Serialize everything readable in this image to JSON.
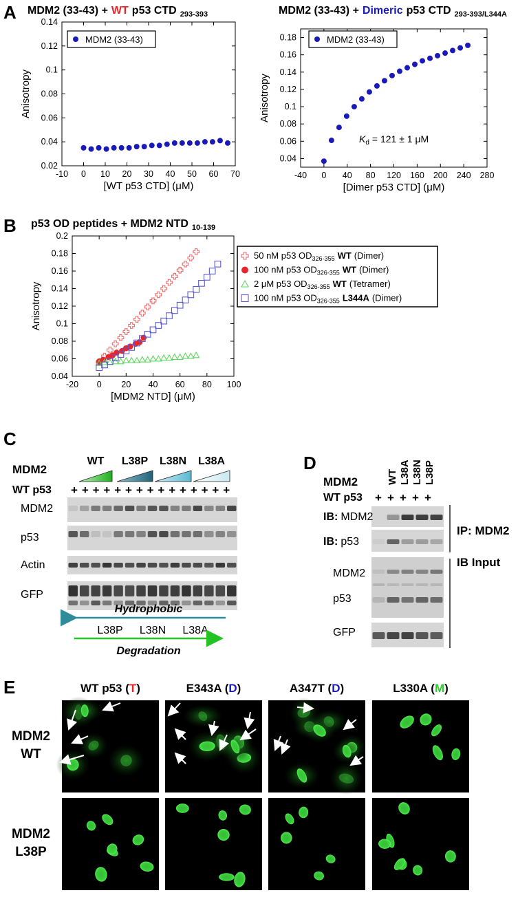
{
  "panel_labels": [
    "A",
    "B",
    "C",
    "D",
    "E"
  ],
  "chart_data": [
    {
      "type": "scatter",
      "title": {
        "before": "MDM2 (33-43) +",
        "highlight": "WT",
        "after": "p53 CTD",
        "sub": "293-393"
      },
      "highlight_color": "#e8252a",
      "xlabel": "[WT p53 CTD] (μM)",
      "ylabel": "Anisotropy",
      "xlim": [
        -10,
        70
      ],
      "xticks": [
        -10,
        0,
        10,
        20,
        30,
        40,
        50,
        60,
        70
      ],
      "ylim": [
        0.02,
        0.14
      ],
      "yticks": [
        0.02,
        0.04,
        0.06,
        0.08,
        0.1,
        0.12,
        0.14
      ],
      "legend": "upper left",
      "series": [
        {
          "name": "MDM2 (33-43)",
          "color": "#1a1ab8",
          "marker": "circle",
          "filled": true,
          "x": [
            0,
            3.5,
            7,
            10.5,
            14,
            17.5,
            21,
            24.5,
            28,
            31.5,
            35,
            38.5,
            42,
            45.5,
            49,
            52.5,
            56,
            59.5,
            63,
            66.5
          ],
          "values": [
            0.035,
            0.034,
            0.035,
            0.034,
            0.035,
            0.035,
            0.035,
            0.036,
            0.036,
            0.037,
            0.037,
            0.038,
            0.039,
            0.039,
            0.039,
            0.039,
            0.04,
            0.04,
            0.041,
            0.039
          ]
        }
      ]
    },
    {
      "type": "scatter",
      "title": {
        "before": "MDM2 (33-43) +",
        "highlight": "Dimeric",
        "after": "p53 CTD",
        "sub": "293-393/L344A"
      },
      "highlight_color": "#1a1ab8",
      "xlabel": "[Dimer p53 CTD] (μM)",
      "ylabel": "Anisotropy",
      "xlim": [
        -40,
        280
      ],
      "xticks": [
        -40,
        0,
        40,
        80,
        120,
        160,
        200,
        240,
        280
      ],
      "ylim": [
        0.03,
        0.19
      ],
      "yticks": [
        0.04,
        0.06,
        0.08,
        0.1,
        0.12,
        0.14,
        0.16,
        0.18
      ],
      "legend": "upper left",
      "annotation": {
        "symbol": "K",
        "sub": "d",
        "text": "= 121 ± 1 μM",
        "color": "#1a1ab8"
      },
      "series": [
        {
          "name": "MDM2 (33-43)",
          "color": "#1a1ab8",
          "marker": "circle",
          "filled": true,
          "x": [
            0,
            13,
            26,
            39,
            52,
            65,
            78,
            91,
            104,
            117,
            130,
            143,
            156,
            169,
            182,
            195,
            208,
            221,
            234,
            247
          ],
          "values": [
            0.037,
            0.061,
            0.076,
            0.089,
            0.1,
            0.109,
            0.117,
            0.124,
            0.13,
            0.136,
            0.141,
            0.145,
            0.149,
            0.153,
            0.156,
            0.159,
            0.162,
            0.165,
            0.168,
            0.171
          ]
        }
      ]
    },
    {
      "type": "scatter",
      "title": {
        "before": "p53 OD peptides + MDM2 NTD",
        "sub": "10-139"
      },
      "xlabel": "[MDM2 NTD] (μM)",
      "ylabel": "Anisotropy",
      "xlim": [
        -20,
        100
      ],
      "xticks": [
        -20,
        0,
        20,
        40,
        60,
        80,
        100
      ],
      "ylim": [
        0.04,
        0.2
      ],
      "yticks": [
        0.04,
        0.06,
        0.08,
        0.1,
        0.12,
        0.14,
        0.16,
        0.18,
        0.2
      ],
      "legend": "outside right",
      "series": [
        {
          "name": {
            "prefix": "50 nM p53 OD",
            "sub": "326-355",
            "variant": "WT",
            "state": "(Dimer)"
          },
          "color": "#f06a6a",
          "text_color": "#e8252a",
          "marker": "plus",
          "filled": false,
          "x": [
            0,
            4,
            8,
            12,
            16,
            20,
            24,
            28,
            32,
            36,
            40,
            44,
            48,
            52,
            56,
            60,
            64,
            68,
            72
          ],
          "values": [
            0.056,
            0.063,
            0.07,
            0.077,
            0.084,
            0.091,
            0.098,
            0.105,
            0.112,
            0.119,
            0.126,
            0.133,
            0.14,
            0.147,
            0.154,
            0.161,
            0.168,
            0.175,
            0.182
          ]
        },
        {
          "name": {
            "prefix": "100 nM p53 OD",
            "sub": "326-355",
            "variant": "WT",
            "state": "(Dimer)"
          },
          "color": "#e8252a",
          "text_color": "#e8252a",
          "marker": "circle",
          "filled": true,
          "x": [
            0,
            3,
            7,
            10,
            13,
            17,
            20,
            23,
            27,
            30,
            33
          ],
          "values": [
            0.057,
            0.059,
            0.062,
            0.064,
            0.067,
            0.069,
            0.072,
            0.074,
            0.077,
            0.079,
            0.084
          ]
        },
        {
          "name": {
            "prefix": "2 μM p53 OD",
            "sub": "326-355",
            "variant": "WT",
            "state": "(Tetramer)"
          },
          "color": "#5fd85f",
          "text_color": "#2fcf2f",
          "marker": "triangle",
          "filled": false,
          "x": [
            0,
            4,
            8,
            12,
            16,
            20,
            24,
            28,
            32,
            36,
            40,
            44,
            48,
            52,
            56,
            60,
            64,
            68,
            72
          ],
          "values": [
            0.055,
            0.056,
            0.056,
            0.057,
            0.057,
            0.058,
            0.058,
            0.058,
            0.059,
            0.059,
            0.06,
            0.06,
            0.061,
            0.061,
            0.062,
            0.062,
            0.063,
            0.063,
            0.064
          ]
        },
        {
          "name": {
            "prefix": "100 nM p53 OD",
            "sub": "326-355",
            "variant": "L344A",
            "state": "(Dimer)"
          },
          "color": "#5a5ad0",
          "text_color": "#1a1ab8",
          "marker": "square",
          "filled": false,
          "x": [
            0,
            4,
            8,
            12,
            16,
            20,
            24,
            28,
            32,
            36,
            40,
            44,
            48,
            52,
            56,
            60,
            64,
            68,
            72,
            76,
            80,
            84,
            88
          ],
          "values": [
            0.05,
            0.053,
            0.057,
            0.061,
            0.065,
            0.069,
            0.073,
            0.078,
            0.083,
            0.088,
            0.093,
            0.098,
            0.103,
            0.109,
            0.115,
            0.121,
            0.127,
            0.133,
            0.139,
            0.146,
            0.153,
            0.16,
            0.168
          ]
        }
      ]
    }
  ],
  "panel_c": {
    "mdm2": "MDM2",
    "groups": [
      "WT",
      "L38P",
      "L38N",
      "L38A"
    ],
    "p53": "WT p53",
    "lanes": [
      "+",
      "+",
      "+",
      "+",
      "+",
      "+",
      "+",
      "+",
      "+",
      "+",
      "+",
      "+",
      "+",
      "+",
      "+"
    ],
    "blots": [
      "MDM2",
      "p53",
      "Actin",
      "GFP"
    ],
    "arrow_top": "Hydrophobic",
    "arrow_mid": [
      "L38P",
      "L38N",
      "L38A"
    ],
    "arrow_bottom": "Degradation"
  },
  "panel_d": {
    "mdm2": "MDM2",
    "columns": [
      "WT",
      "L38A",
      "L38N",
      "L38P"
    ],
    "p53": "WT p53",
    "lanes": [
      "+",
      "+",
      "+",
      "+",
      "+"
    ],
    "ip_blots": [
      {
        "prefix": "IB:",
        "target": "MDM2"
      },
      {
        "prefix": "IB:",
        "target": "p53"
      }
    ],
    "ip_label": "IP: MDM2",
    "input_blots": [
      "MDM2",
      "p53",
      "GFP"
    ],
    "input_label": "IB Input"
  },
  "panel_e": {
    "columns": [
      {
        "parts": [
          "WT p53 (",
          "T",
          ")"
        ],
        "color": "#e8252a"
      },
      {
        "parts": [
          "E343A (",
          "D",
          ")"
        ],
        "color": "#1a1ab8"
      },
      {
        "parts": [
          "A347T (",
          "D",
          ")"
        ],
        "color": "#1a1ab8"
      },
      {
        "parts": [
          "L330A (",
          "M",
          ")"
        ],
        "color": "#2fcf2f"
      }
    ],
    "rows": [
      [
        "MDM2",
        "WT"
      ],
      [
        "MDM2",
        "L38P"
      ]
    ]
  }
}
